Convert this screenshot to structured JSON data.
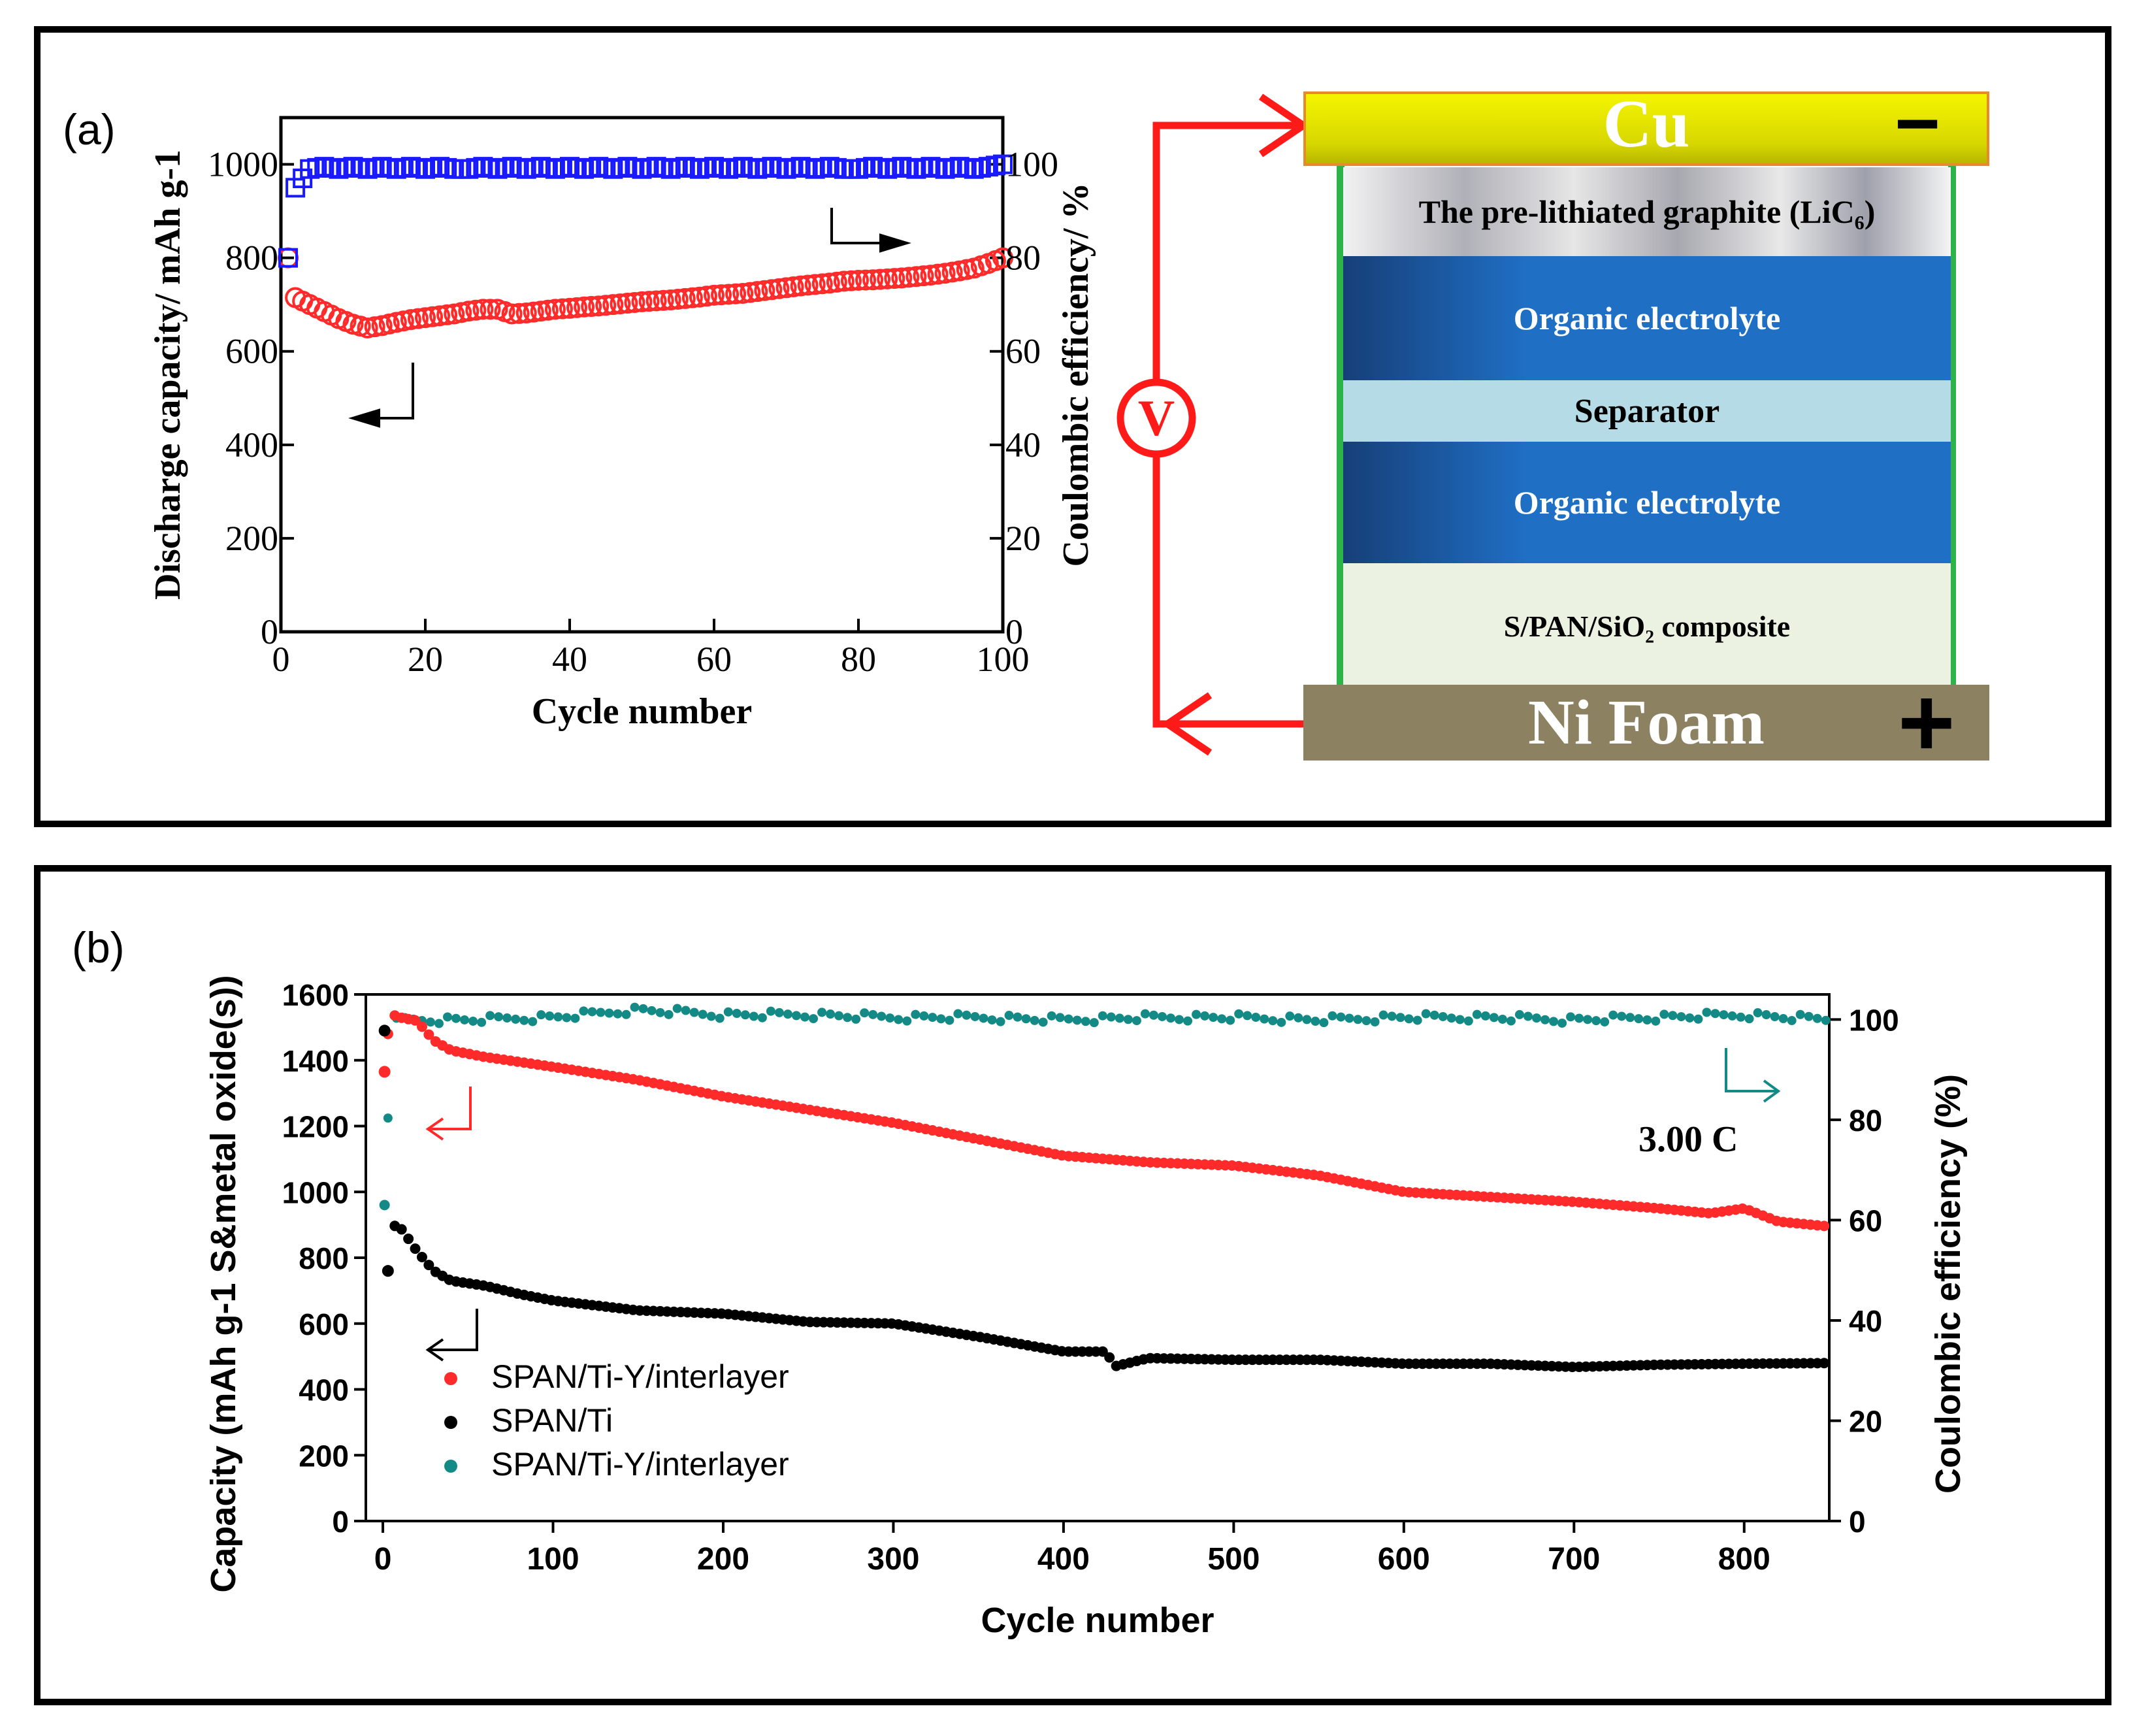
{
  "panel_a": {
    "label": "(a)",
    "left_arrow_label": "←",
    "right_arrow_label": "→"
  },
  "cell": {
    "cu_label": "Cu",
    "minus_sign": "−",
    "graphite_label": "The pre-lithiated graphite (LiC₆)",
    "electrolyte_top": "Organic electrolyte",
    "separator": "Separator",
    "electrolyte_bottom": "Organic electrolyte",
    "cathode": "S/PAN/SiO₂ composite",
    "ni_label": "Ni Foam",
    "plus_sign": "+",
    "voltmeter": "V",
    "colors": {
      "wire": "#ff1a1a",
      "cu": "#e6e600",
      "ni": "#8c8262",
      "electrolyte": "#1f6fc4",
      "separator": "#b5dbe6",
      "cathode": "#ebf2e1",
      "frame": "#2db34a"
    }
  },
  "panel_b": {
    "label": "(b)",
    "rate_label": "3.00 C"
  },
  "chart_data": [
    {
      "type": "scatter",
      "title": "",
      "xlabel": "Cycle number",
      "ylabel": "Discharge capacity/ mAh g-1",
      "y2label": "Coulombic efficiency/ %",
      "xlim": [
        0,
        100
      ],
      "ylim": [
        0,
        1100
      ],
      "y2lim": [
        0,
        110
      ],
      "xticks": [
        "0",
        "20",
        "40",
        "60",
        "80",
        "100"
      ],
      "yticks": [
        "0",
        "200",
        "400",
        "600",
        "800",
        "1000"
      ],
      "y2ticks": [
        "0",
        "20",
        "40",
        "60",
        "80",
        "100"
      ],
      "series": [
        {
          "name": "Discharge capacity",
          "axis": "left",
          "marker": "circle",
          "color": "#ff2a2a",
          "x": [
            1,
            2,
            4,
            6,
            8,
            10,
            12,
            14,
            16,
            18,
            20,
            22,
            24,
            26,
            28,
            30,
            32,
            34,
            36,
            38,
            40,
            42,
            44,
            46,
            48,
            50,
            52,
            54,
            56,
            58,
            60,
            62,
            64,
            66,
            68,
            70,
            72,
            74,
            76,
            78,
            80,
            82,
            84,
            86,
            88,
            90,
            92,
            94,
            96,
            98,
            100
          ],
          "y": [
            800,
            715,
            700,
            685,
            670,
            658,
            650,
            655,
            662,
            668,
            672,
            676,
            680,
            686,
            690,
            690,
            680,
            682,
            686,
            690,
            692,
            695,
            697,
            700,
            703,
            706,
            708,
            710,
            713,
            716,
            720,
            722,
            724,
            728,
            732,
            736,
            740,
            743,
            746,
            750,
            752,
            753,
            755,
            757,
            760,
            763,
            767,
            772,
            778,
            788,
            800
          ]
        },
        {
          "name": "Coulombic efficiency",
          "axis": "right",
          "marker": "square",
          "color": "#1a1aff",
          "x": [
            1,
            2,
            3,
            4,
            6,
            8,
            10,
            12,
            14,
            16,
            18,
            20,
            22,
            24,
            26,
            28,
            30,
            32,
            34,
            36,
            38,
            40,
            42,
            44,
            46,
            48,
            50,
            52,
            54,
            56,
            58,
            60,
            62,
            64,
            66,
            68,
            70,
            72,
            74,
            76,
            78,
            80,
            82,
            84,
            86,
            88,
            90,
            92,
            94,
            96,
            98,
            100
          ],
          "y": [
            80,
            95,
            97,
            99,
            99.5,
            99,
            99.5,
            99,
            99.5,
            99,
            99.5,
            99,
            99.5,
            99,
            99,
            99.5,
            99,
            99.5,
            99,
            99.5,
            99,
            99.5,
            99,
            99.5,
            99,
            99.5,
            99,
            99.5,
            99,
            99.5,
            99,
            99.5,
            99,
            99.5,
            99,
            99.5,
            99,
            99.5,
            99,
            99.5,
            99,
            99,
            99.5,
            99,
            99.5,
            99,
            99.5,
            99,
            99.5,
            99,
            99.5,
            100
          ]
        }
      ]
    },
    {
      "type": "scatter",
      "title": "",
      "xlabel": "Cycle number",
      "ylabel": "Capacity (mAh g-1 S&metal oxide(s))",
      "y2label": "Coulombic efficiency (%)",
      "xlim": [
        -10,
        850
      ],
      "ylim": [
        0,
        1600
      ],
      "y2lim": [
        0,
        105
      ],
      "xticks": [
        "0",
        "100",
        "200",
        "300",
        "400",
        "500",
        "600",
        "700",
        "800"
      ],
      "yticks": [
        "0",
        "200",
        "400",
        "600",
        "800",
        "1000",
        "1200",
        "1400",
        "1600"
      ],
      "y2ticks": [
        "0",
        "20",
        "40",
        "60",
        "80",
        "100"
      ],
      "legend_position": "lower-left",
      "series": [
        {
          "name": "SPAN/Ti-Y/interlayer",
          "axis": "left",
          "color": "#ff2a2a",
          "x": [
            1,
            3,
            5,
            10,
            20,
            30,
            40,
            60,
            80,
            100,
            150,
            200,
            250,
            300,
            350,
            400,
            450,
            500,
            550,
            600,
            650,
            700,
            750,
            780,
            800,
            820,
            850
          ],
          "y": [
            1365,
            1480,
            1540,
            1530,
            1520,
            1460,
            1430,
            1410,
            1395,
            1380,
            1340,
            1290,
            1250,
            1210,
            1160,
            1110,
            1090,
            1080,
            1050,
            1000,
            985,
            970,
            950,
            935,
            950,
            910,
            895
          ]
        },
        {
          "name": "SPAN/Ti",
          "axis": "left",
          "color": "#000000",
          "x": [
            1,
            3,
            5,
            8,
            12,
            20,
            30,
            40,
            60,
            80,
            100,
            150,
            200,
            250,
            300,
            350,
            400,
            425,
            430,
            450,
            500,
            550,
            600,
            650,
            700,
            750,
            800,
            850
          ],
          "y": [
            1490,
            760,
            880,
            905,
            880,
            820,
            760,
            730,
            715,
            690,
            670,
            640,
            630,
            605,
            600,
            560,
            515,
            515,
            470,
            495,
            490,
            490,
            478,
            478,
            468,
            475,
            478,
            480
          ]
        },
        {
          "name": "SPAN/Ti-Y/interlayer",
          "axis": "right",
          "color": "#138a86",
          "x": [
            1,
            5,
            10,
            50,
            100,
            150,
            200,
            250,
            300,
            350,
            400,
            450,
            500,
            550,
            600,
            650,
            700,
            750,
            800,
            850
          ],
          "y": [
            63,
            99,
            100,
            100,
            100.5,
            102,
            101,
            101,
            100.5,
            100.5,
            100,
            100.5,
            100.5,
            100,
            100.5,
            100.5,
            100,
            100.5,
            101,
            100
          ]
        }
      ]
    }
  ]
}
